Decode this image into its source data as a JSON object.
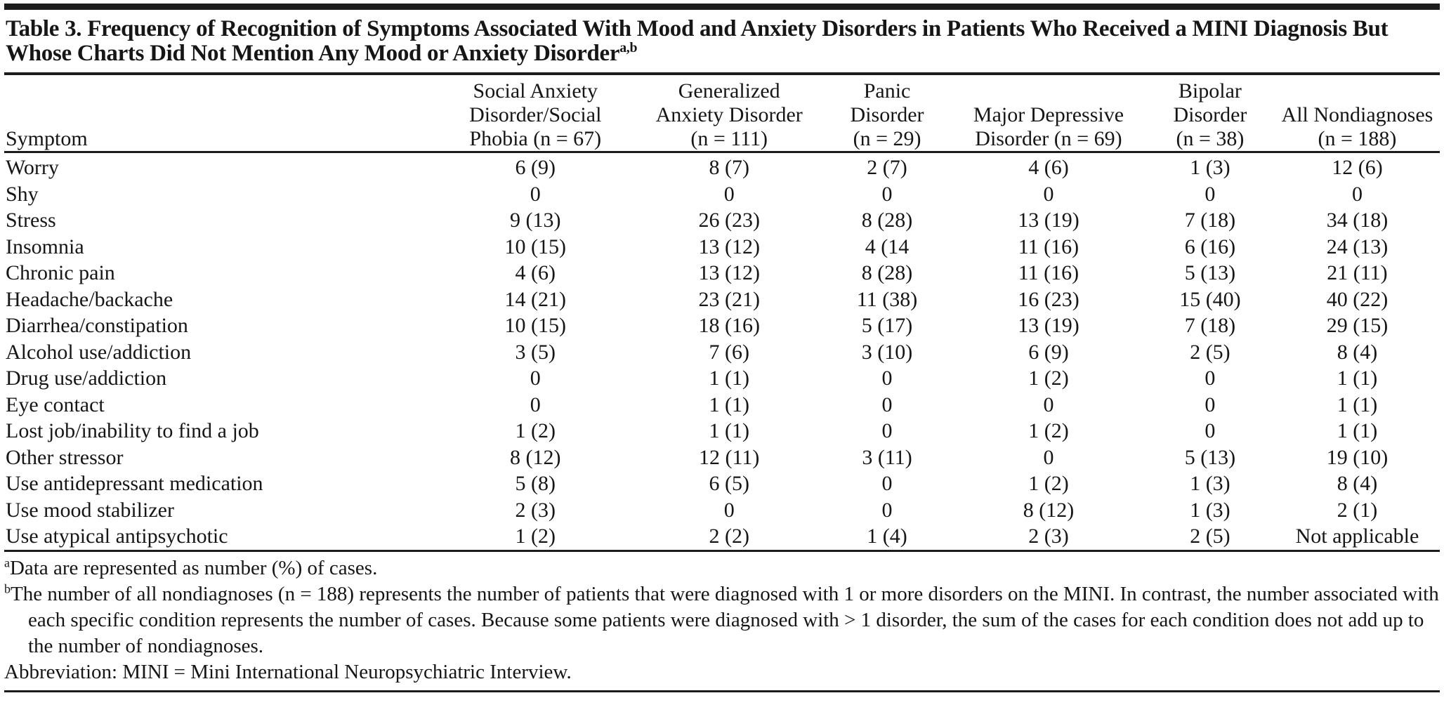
{
  "table": {
    "title": "Table 3. Frequency of Recognition of Symptoms Associated With Mood and Anxiety Disorders in Patients Who Received a MINI Diagnosis But Whose Charts Did Not Mention Any Mood or Anxiety Disorder",
    "title_superscript": "a,b",
    "columns": [
      {
        "id": "symptom",
        "label_lines": [
          "Symptom"
        ]
      },
      {
        "id": "social-anxiety",
        "label_lines": [
          "Social Anxiety",
          "Disorder/Social",
          "Phobia (n = 67)"
        ]
      },
      {
        "id": "generalized-anxiety",
        "label_lines": [
          "Generalized",
          "Anxiety Disorder",
          "(n = 111)"
        ]
      },
      {
        "id": "panic",
        "label_lines": [
          "Panic",
          "Disorder",
          "(n = 29)"
        ]
      },
      {
        "id": "major-depressive",
        "label_lines": [
          "Major Depressive",
          "Disorder (n = 69)"
        ]
      },
      {
        "id": "bipolar",
        "label_lines": [
          "Bipolar",
          "Disorder",
          "(n = 38)"
        ]
      },
      {
        "id": "all-nondiagnoses",
        "label_lines": [
          "All Nondiagnoses",
          "(n = 188)"
        ]
      }
    ],
    "rows": [
      {
        "symptom": "Worry",
        "values": [
          "6 (9)",
          "8 (7)",
          "2 (7)",
          "4 (6)",
          "1 (3)",
          "12 (6)"
        ]
      },
      {
        "symptom": "Shy",
        "values": [
          "0",
          "0",
          "0",
          "0",
          "0",
          "0"
        ]
      },
      {
        "symptom": "Stress",
        "values": [
          "9 (13)",
          "26 (23)",
          "8 (28)",
          "13 (19)",
          "7 (18)",
          "34 (18)"
        ]
      },
      {
        "symptom": "Insomnia",
        "values": [
          "10 (15)",
          "13 (12)",
          "4 (14",
          "11 (16)",
          "6 (16)",
          "24 (13)"
        ]
      },
      {
        "symptom": "Chronic pain",
        "values": [
          "4 (6)",
          "13 (12)",
          "8 (28)",
          "11 (16)",
          "5 (13)",
          "21 (11)"
        ]
      },
      {
        "symptom": "Headache/backache",
        "values": [
          "14 (21)",
          "23 (21)",
          "11 (38)",
          "16 (23)",
          "15 (40)",
          "40 (22)"
        ]
      },
      {
        "symptom": "Diarrhea/constipation",
        "values": [
          "10 (15)",
          "18 (16)",
          "5 (17)",
          "13 (19)",
          "7 (18)",
          "29 (15)"
        ]
      },
      {
        "symptom": "Alcohol use/addiction",
        "values": [
          "3 (5)",
          "7 (6)",
          "3 (10)",
          "6 (9)",
          "2 (5)",
          "8 (4)"
        ]
      },
      {
        "symptom": "Drug use/addiction",
        "values": [
          "0",
          "1 (1)",
          "0",
          "1 (2)",
          "0",
          "1 (1)"
        ]
      },
      {
        "symptom": "Eye contact",
        "values": [
          "0",
          "1 (1)",
          "0",
          "0",
          "0",
          "1 (1)"
        ]
      },
      {
        "symptom": "Lost job/inability to find a job",
        "values": [
          "1 (2)",
          "1 (1)",
          "0",
          "1 (2)",
          "0",
          "1 (1)"
        ]
      },
      {
        "symptom": "Other stressor",
        "values": [
          "8 (12)",
          "12 (11)",
          "3 (11)",
          "0",
          "5 (13)",
          "19 (10)"
        ]
      },
      {
        "symptom": "Use antidepressant medication",
        "values": [
          "5 (8)",
          "6 (5)",
          "0",
          "1 (2)",
          "1 (3)",
          "8 (4)"
        ]
      },
      {
        "symptom": "Use mood stabilizer",
        "values": [
          "2 (3)",
          "0",
          "0",
          "8 (12)",
          "1 (3)",
          "2 (1)"
        ]
      },
      {
        "symptom": "Use atypical antipsychotic",
        "values": [
          "1 (2)",
          "2 (2)",
          "1 (4)",
          "2 (3)",
          "2 (5)",
          "Not applicable"
        ]
      }
    ],
    "footnotes": [
      {
        "marker": "a",
        "text": "Data are represented as number (%) of cases."
      },
      {
        "marker": "b",
        "text": "The number of all nondiagnoses (n = 188) represents the number of patients that were diagnosed with 1 or more disorders on the MINI. In contrast, the number associated with each specific condition represents the number of cases. Because some patients were diagnosed with > 1 disorder, the sum of the cases for each condition does not add up to the number of nondiagnoses."
      },
      {
        "marker": "",
        "text": "Abbreviation: MINI = Mini International Neuropsychiatric Interview."
      }
    ],
    "colors": {
      "rule": "#1c1c1c",
      "text": "#161616",
      "background": "#ffffff"
    }
  }
}
